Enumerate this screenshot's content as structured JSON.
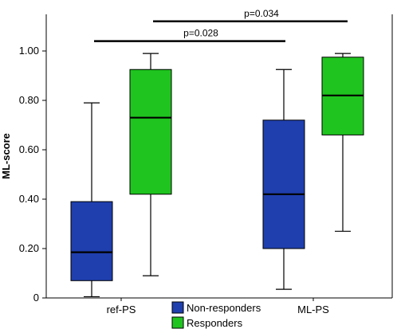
{
  "chart_data": {
    "type": "box",
    "ylabel": "ML-score",
    "xlabel": "",
    "ylim": [
      0,
      1.1
    ],
    "y_ticks": [
      "0",
      "0.20",
      "0.40",
      "0.60",
      "0.80",
      "1.00"
    ],
    "y_tick_values": [
      0,
      0.2,
      0.4,
      0.6,
      0.8,
      1.0
    ],
    "categories": [
      "ref-PS",
      "ML-PS"
    ],
    "grid": false,
    "legend_position": "bottom-center",
    "series": [
      {
        "name": "Non-responders",
        "color": "#1f3fae",
        "boxes": [
          {
            "min": 0.005,
            "q1": 0.07,
            "median": 0.185,
            "q3": 0.39,
            "max": 0.79
          },
          {
            "min": 0.035,
            "q1": 0.2,
            "median": 0.42,
            "q3": 0.72,
            "max": 0.925
          }
        ]
      },
      {
        "name": "Responders",
        "color": "#1fc41f",
        "boxes": [
          {
            "min": 0.09,
            "q1": 0.42,
            "median": 0.73,
            "q3": 0.925,
            "max": 0.99
          },
          {
            "min": 0.27,
            "q1": 0.66,
            "median": 0.82,
            "q3": 0.975,
            "max": 0.99
          }
        ]
      }
    ],
    "annotations": [
      {
        "text": "p=0.028",
        "level": 1.04
      },
      {
        "text": "p=0.034",
        "level": 1.12
      }
    ]
  }
}
